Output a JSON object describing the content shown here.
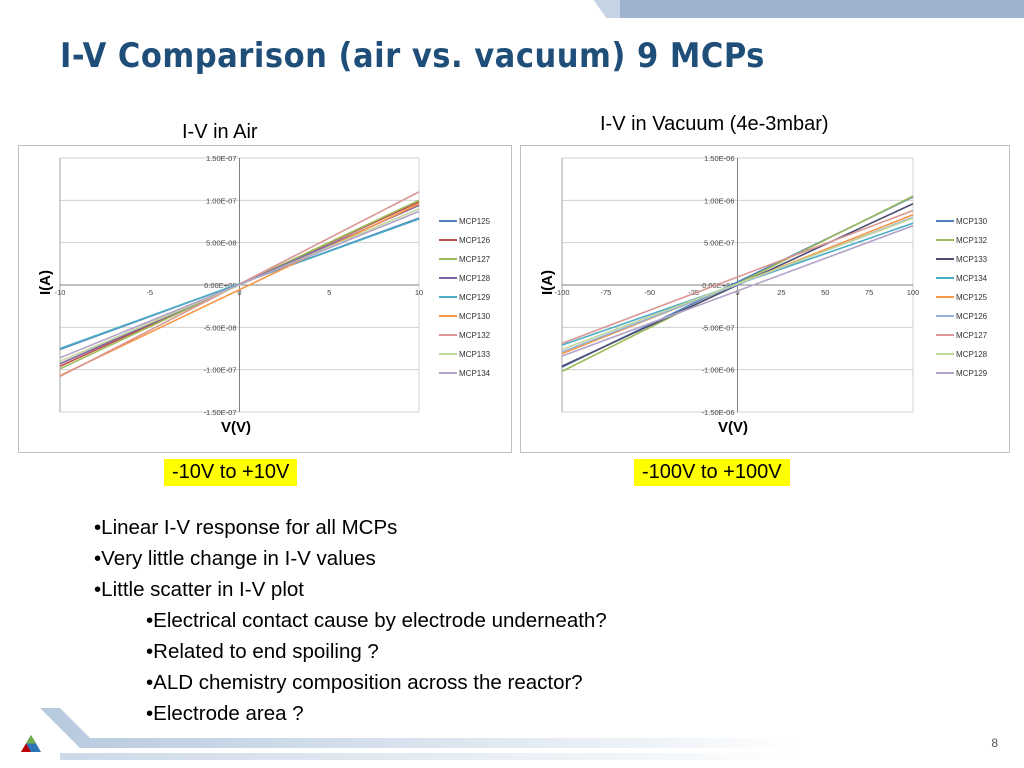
{
  "slide": {
    "title": "I-V Comparison (air vs. vacuum) 9 MCPs",
    "page_number": "8",
    "left_chart_label": "I-V in Air",
    "right_chart_label": "I-V in Vacuum (4e-3mbar)",
    "left_range": "-10V to +10V",
    "right_range": "-100V to +100V",
    "bullets": [
      "•Linear I-V response for all MCPs",
      "•Very little change in I-V values",
      "•Little scatter in I-V plot"
    ],
    "sub_bullets": [
      "•Electrical contact cause by electrode underneath?",
      "•Related to end spoiling ?",
      "•ALD chemistry composition across the reactor?",
      "•Electrode area ?"
    ]
  },
  "chart_data": [
    {
      "type": "line",
      "title": "",
      "xlabel": "V(V)",
      "ylabel": "I(A)",
      "xlim": [
        -10,
        10
      ],
      "ylim": [
        -1.5e-07,
        1.5e-07
      ],
      "x_ticks": [
        "-10",
        "-5",
        "0",
        "5",
        "10"
      ],
      "y_ticks": [
        "1.50E-07",
        "1.00E-07",
        "5.00E-08",
        "0.00E+00",
        "-5.00E-08",
        "-1.00E-07",
        "-1.50E-07"
      ],
      "grid": "horizontal",
      "legend_position": "right",
      "x": [
        -10,
        10
      ],
      "series": [
        {
          "name": "MCP125",
          "color": "#4f81bd",
          "values": [
            -7.6e-08,
            7.9e-08
          ]
        },
        {
          "name": "MCP126",
          "color": "#c0504d",
          "values": [
            -9.6e-08,
            9.8e-08
          ]
        },
        {
          "name": "MCP127",
          "color": "#9bbb59",
          "values": [
            -9.9e-08,
            1e-07
          ]
        },
        {
          "name": "MCP128",
          "color": "#8064a2",
          "values": [
            -9.3e-08,
            9.4e-08
          ]
        },
        {
          "name": "MCP129",
          "color": "#4bacc6",
          "values": [
            -7.5e-08,
            7.8e-08
          ]
        },
        {
          "name": "MCP130",
          "color": "#f79646",
          "values": [
            -1.07e-07,
            9.6e-08
          ]
        },
        {
          "name": "MCP132",
          "color": "#d99694",
          "values": [
            -1.08e-07,
            1.1e-07
          ]
        },
        {
          "name": "MCP133",
          "color": "#c3d69b",
          "values": [
            -9e-08,
            9e-08
          ]
        },
        {
          "name": "MCP134",
          "color": "#b3a2c7",
          "values": [
            -8.6e-08,
            8.7e-08
          ]
        }
      ]
    },
    {
      "type": "line",
      "title": "",
      "xlabel": "V(V)",
      "ylabel": "I(A)",
      "xlim": [
        -100,
        100
      ],
      "ylim": [
        -1.5e-06,
        1.5e-06
      ],
      "x_ticks": [
        "-100",
        "-75",
        "-50",
        "-25",
        "0",
        "25",
        "50",
        "75",
        "100"
      ],
      "y_ticks": [
        "1.50E-06",
        "1.00E-06",
        "5.00E-07",
        "0.00E+00",
        "-5.00E-07",
        "-1.00E-06",
        "-1.50E-06"
      ],
      "grid": "horizontal",
      "legend_position": "right",
      "x": [
        -100,
        100
      ],
      "series": [
        {
          "name": "MCP130",
          "color": "#4f81bd",
          "values": [
            -9.7e-07,
            1.04e-06
          ]
        },
        {
          "name": "MCP132",
          "color": "#9bbb59",
          "values": [
            -1.02e-06,
            1.05e-06
          ]
        },
        {
          "name": "MCP133",
          "color": "#4d4d73",
          "values": [
            -9.6e-07,
            9.6e-07
          ]
        },
        {
          "name": "MCP134",
          "color": "#4bacc6",
          "values": [
            -7.1e-07,
            7.3e-07
          ]
        },
        {
          "name": "MCP125",
          "color": "#f79646",
          "values": [
            -8.1e-07,
            8.3e-07
          ]
        },
        {
          "name": "MCP126",
          "color": "#95b3d7",
          "values": [
            -7.9e-07,
            8e-07
          ]
        },
        {
          "name": "MCP127",
          "color": "#d99694",
          "values": [
            -6.9e-07,
            8.8e-07
          ]
        },
        {
          "name": "MCP128",
          "color": "#c3d69b",
          "values": [
            -7.6e-07,
            7.9e-07
          ]
        },
        {
          "name": "MCP129",
          "color": "#b3a2c7",
          "values": [
            -8.4e-07,
            7e-07
          ]
        }
      ]
    }
  ]
}
